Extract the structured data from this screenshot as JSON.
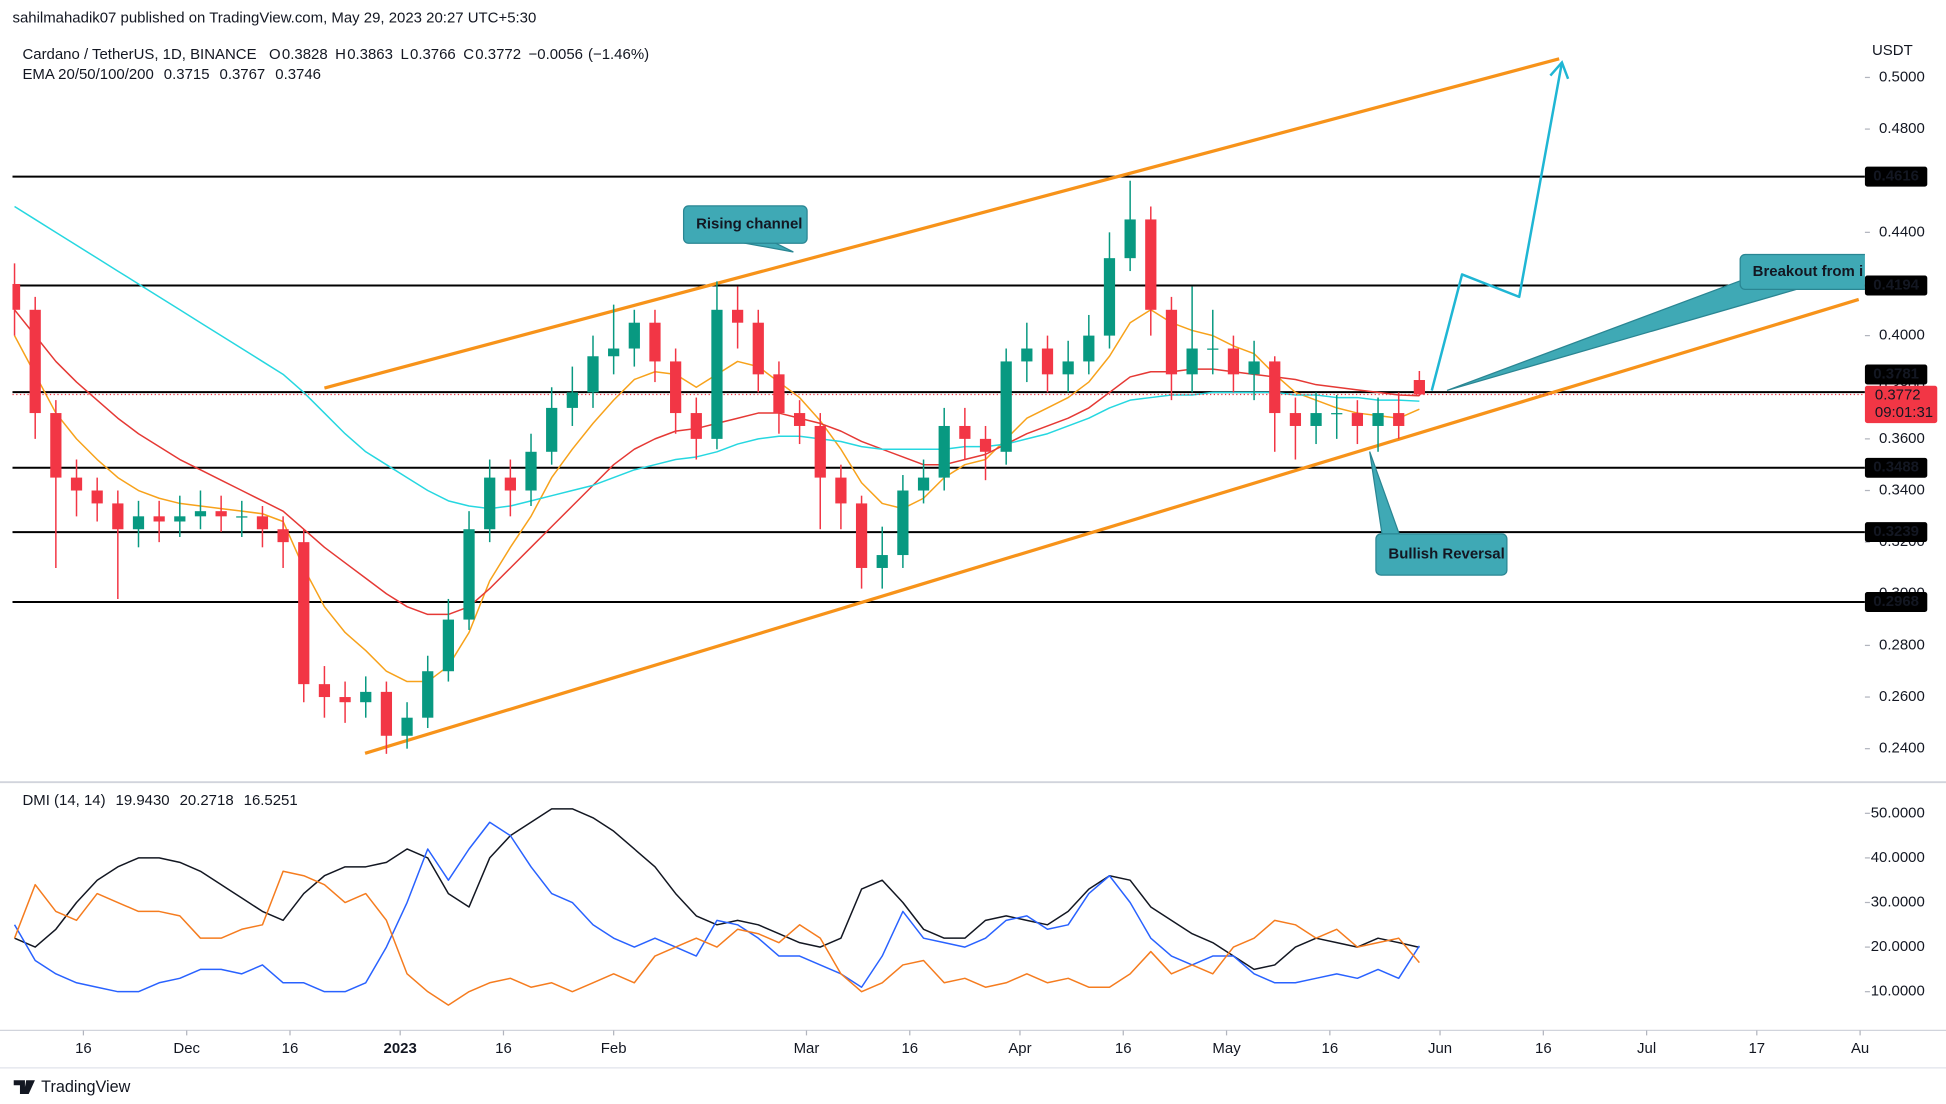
{
  "header": {
    "published": "sahilmahadik07 published on TradingView.com, May 29, 2023 20:27 UTC+5:30"
  },
  "footer": {
    "brand": "TradingView"
  },
  "chart_data": [
    {
      "type": "candlestick",
      "title": "Cardano / TetherUS, 1D, BINANCE",
      "ohlc_legend": [
        {
          "label": "O",
          "value": 0.3828
        },
        {
          "label": "H",
          "value": 0.3863
        },
        {
          "label": "L",
          "value": 0.3766
        },
        {
          "label": "C",
          "value": 0.3772
        }
      ],
      "change": {
        "value": -0.0056,
        "label": "−0.0056"
      },
      "change_pct": {
        "value": -1.46,
        "label": "(−1.46%)"
      },
      "up_color": "#089981",
      "down_color": "#f23645",
      "x": [
        -10,
        -7,
        -4,
        -1,
        2,
        5,
        8,
        11,
        14,
        17,
        20,
        23,
        26,
        29,
        32,
        35,
        38,
        41,
        44,
        47,
        50,
        53,
        56,
        59,
        62,
        65,
        68,
        71,
        74,
        77,
        80,
        83,
        86,
        89,
        92,
        95,
        98,
        101,
        104,
        107,
        110,
        113,
        116,
        119,
        122,
        125,
        128,
        131,
        134,
        137,
        140,
        143,
        146,
        149,
        152,
        155,
        158,
        161,
        164,
        167,
        170,
        173,
        176,
        179,
        182,
        185,
        188,
        191,
        194
      ],
      "open": [
        0.42,
        0.41,
        0.37,
        0.345,
        0.34,
        0.335,
        0.325,
        0.33,
        0.328,
        0.33,
        0.332,
        0.33,
        0.33,
        0.325,
        0.32,
        0.265,
        0.26,
        0.258,
        0.262,
        0.245,
        0.252,
        0.27,
        0.29,
        0.325,
        0.345,
        0.34,
        0.355,
        0.372,
        0.378,
        0.392,
        0.395,
        0.405,
        0.39,
        0.37,
        0.36,
        0.41,
        0.405,
        0.385,
        0.37,
        0.365,
        0.345,
        0.335,
        0.31,
        0.315,
        0.34,
        0.345,
        0.365,
        0.36,
        0.355,
        0.39,
        0.395,
        0.385,
        0.39,
        0.4,
        0.43,
        0.445,
        0.41,
        0.385,
        0.395,
        0.395,
        0.385,
        0.39,
        0.37,
        0.365,
        0.37,
        0.37,
        0.365,
        0.37,
        0.3828
      ],
      "high": [
        0.428,
        0.415,
        0.375,
        0.352,
        0.345,
        0.34,
        0.336,
        0.336,
        0.338,
        0.34,
        0.338,
        0.336,
        0.334,
        0.33,
        0.325,
        0.272,
        0.266,
        0.268,
        0.266,
        0.258,
        0.276,
        0.298,
        0.332,
        0.352,
        0.352,
        0.362,
        0.38,
        0.388,
        0.4,
        0.412,
        0.41,
        0.41,
        0.395,
        0.376,
        0.421,
        0.419,
        0.41,
        0.39,
        0.375,
        0.37,
        0.35,
        0.338,
        0.326,
        0.346,
        0.352,
        0.372,
        0.372,
        0.365,
        0.395,
        0.405,
        0.4,
        0.398,
        0.408,
        0.44,
        0.46,
        0.45,
        0.415,
        0.419,
        0.41,
        0.4,
        0.398,
        0.392,
        0.376,
        0.378,
        0.377,
        0.375,
        0.376,
        0.378,
        0.3863
      ],
      "low": [
        0.4,
        0.36,
        0.31,
        0.33,
        0.328,
        0.298,
        0.318,
        0.32,
        0.322,
        0.325,
        0.324,
        0.322,
        0.318,
        0.31,
        0.258,
        0.252,
        0.25,
        0.252,
        0.238,
        0.24,
        0.248,
        0.266,
        0.286,
        0.32,
        0.33,
        0.334,
        0.35,
        0.365,
        0.372,
        0.385,
        0.388,
        0.382,
        0.362,
        0.352,
        0.356,
        0.395,
        0.378,
        0.362,
        0.358,
        0.325,
        0.325,
        0.302,
        0.302,
        0.31,
        0.335,
        0.34,
        0.352,
        0.344,
        0.35,
        0.382,
        0.378,
        0.378,
        0.385,
        0.395,
        0.425,
        0.4,
        0.375,
        0.378,
        0.385,
        0.378,
        0.375,
        0.355,
        0.352,
        0.358,
        0.36,
        0.358,
        0.355,
        0.36,
        0.3766
      ],
      "close": [
        0.41,
        0.37,
        0.345,
        0.34,
        0.335,
        0.325,
        0.33,
        0.328,
        0.33,
        0.332,
        0.33,
        0.33,
        0.325,
        0.32,
        0.265,
        0.26,
        0.258,
        0.262,
        0.245,
        0.252,
        0.27,
        0.29,
        0.325,
        0.345,
        0.34,
        0.355,
        0.372,
        0.378,
        0.392,
        0.395,
        0.405,
        0.39,
        0.37,
        0.36,
        0.41,
        0.405,
        0.385,
        0.37,
        0.365,
        0.345,
        0.335,
        0.31,
        0.315,
        0.34,
        0.345,
        0.365,
        0.36,
        0.355,
        0.39,
        0.395,
        0.385,
        0.39,
        0.4,
        0.43,
        0.445,
        0.41,
        0.385,
        0.395,
        0.395,
        0.385,
        0.39,
        0.37,
        0.365,
        0.37,
        0.37,
        0.365,
        0.37,
        0.365,
        0.3772
      ],
      "xlim": [
        -10.3,
        258.7
      ],
      "ylim": [
        0.228,
        0.5155
      ],
      "yticks": [
        {
          "value": 0.24,
          "label": "0.2400"
        },
        {
          "value": 0.26,
          "label": "0.2600"
        },
        {
          "value": 0.28,
          "label": "0.2800"
        },
        {
          "value": 0.3,
          "label": "0.3000"
        },
        {
          "value": 0.32,
          "label": "0.3200"
        },
        {
          "value": 0.34,
          "label": "0.3400"
        },
        {
          "value": 0.36,
          "label": "0.3600"
        },
        {
          "value": 0.38,
          "label": "0.3800"
        },
        {
          "value": 0.4,
          "label": "0.4000"
        },
        {
          "value": 0.42,
          "label": "0.4200"
        },
        {
          "value": 0.44,
          "label": "0.4400"
        },
        {
          "value": 0.46,
          "label": "0.4600"
        },
        {
          "value": 0.48,
          "label": "0.4800"
        },
        {
          "value": 0.5,
          "label": "0.5000"
        }
      ],
      "y_unit": "USDT",
      "overlays": {
        "indicator": "EMA 20/50/100/200",
        "series": [
          {
            "color": "#f7a21b",
            "last": 0.3715,
            "values": [
              0.4,
              0.385,
              0.37,
              0.36,
              0.352,
              0.345,
              0.34,
              0.337,
              0.335,
              0.334,
              0.333,
              0.332,
              0.331,
              0.328,
              0.31,
              0.295,
              0.285,
              0.278,
              0.27,
              0.266,
              0.266,
              0.272,
              0.285,
              0.305,
              0.318,
              0.33,
              0.345,
              0.356,
              0.366,
              0.375,
              0.383,
              0.386,
              0.385,
              0.38,
              0.385,
              0.39,
              0.388,
              0.382,
              0.376,
              0.367,
              0.356,
              0.343,
              0.335,
              0.333,
              0.337,
              0.345,
              0.35,
              0.352,
              0.36,
              0.368,
              0.372,
              0.376,
              0.382,
              0.392,
              0.405,
              0.41,
              0.405,
              0.402,
              0.4,
              0.396,
              0.393,
              0.385,
              0.378,
              0.375,
              0.372,
              0.37,
              0.369,
              0.368,
              0.3715
            ]
          },
          {
            "color": "#e53935",
            "last": 0.3767,
            "values": [
              0.41,
              0.4,
              0.39,
              0.382,
              0.375,
              0.368,
              0.362,
              0.357,
              0.352,
              0.348,
              0.344,
              0.34,
              0.336,
              0.332,
              0.325,
              0.318,
              0.312,
              0.306,
              0.3,
              0.295,
              0.292,
              0.292,
              0.295,
              0.302,
              0.31,
              0.318,
              0.326,
              0.334,
              0.342,
              0.35,
              0.356,
              0.36,
              0.363,
              0.364,
              0.366,
              0.368,
              0.37,
              0.37,
              0.368,
              0.366,
              0.363,
              0.359,
              0.356,
              0.353,
              0.35,
              0.35,
              0.352,
              0.354,
              0.358,
              0.362,
              0.365,
              0.368,
              0.372,
              0.378,
              0.384,
              0.386,
              0.386,
              0.387,
              0.387,
              0.386,
              0.385,
              0.384,
              0.383,
              0.381,
              0.38,
              0.379,
              0.378,
              0.377,
              0.3767
            ]
          },
          {
            "color": "#26d7e0",
            "last": 0.3746,
            "values": [
              0.45,
              0.445,
              0.44,
              0.435,
              0.43,
              0.425,
              0.42,
              0.415,
              0.41,
              0.405,
              0.4,
              0.395,
              0.39,
              0.385,
              0.378,
              0.37,
              0.362,
              0.355,
              0.35,
              0.345,
              0.34,
              0.336,
              0.334,
              0.333,
              0.334,
              0.336,
              0.338,
              0.34,
              0.342,
              0.345,
              0.348,
              0.35,
              0.352,
              0.353,
              0.355,
              0.358,
              0.36,
              0.361,
              0.361,
              0.36,
              0.359,
              0.357,
              0.356,
              0.356,
              0.356,
              0.356,
              0.357,
              0.357,
              0.358,
              0.36,
              0.362,
              0.365,
              0.368,
              0.372,
              0.375,
              0.376,
              0.377,
              0.377,
              0.378,
              0.378,
              0.378,
              0.378,
              0.377,
              0.377,
              0.376,
              0.376,
              0.375,
              0.375,
              0.3746
            ]
          }
        ]
      },
      "levels": [
        0.4616,
        0.4194,
        0.3781,
        0.3488,
        0.3239,
        0.2968
      ],
      "last_price": {
        "value": 0.3772,
        "countdown": "09:01:31"
      },
      "channel": {
        "color": "#f7931a",
        "upper": {
          "x": [
            35,
            214.3
          ],
          "y": [
            0.3797,
            0.5072
          ]
        },
        "lower": {
          "x": [
            40.9,
            257.8
          ],
          "y": [
            0.2382,
            0.414
          ]
        }
      },
      "projection": {
        "color": "#1fb6d4",
        "x": [
          195.8,
          200.2,
          208.5,
          214.7
        ],
        "y": [
          0.3787,
          0.4237,
          0.415,
          0.5058
        ]
      },
      "annotations": [
        {
          "text": "Rising channel"
        },
        {
          "text": "Breakout from i"
        },
        {
          "text": "Bullish Reversal"
        }
      ]
    },
    {
      "type": "line",
      "title": "DMI (14, 14)",
      "legend_values": [
        {
          "value": 19.943,
          "label": "19.9430"
        },
        {
          "value": 20.2718,
          "label": "20.2718"
        },
        {
          "value": 16.5251,
          "label": "16.5251"
        }
      ],
      "x": [
        -10,
        -7,
        -4,
        -1,
        2,
        5,
        8,
        11,
        14,
        17,
        20,
        23,
        26,
        29,
        32,
        35,
        38,
        41,
        44,
        47,
        50,
        53,
        56,
        59,
        62,
        65,
        68,
        71,
        74,
        77,
        80,
        83,
        86,
        89,
        92,
        95,
        98,
        101,
        104,
        107,
        110,
        113,
        116,
        119,
        122,
        125,
        128,
        131,
        134,
        137,
        140,
        143,
        146,
        149,
        152,
        155,
        158,
        161,
        164,
        167,
        170,
        173,
        176,
        179,
        182,
        185,
        188,
        191,
        194
      ],
      "series": [
        {
          "color": "#131722",
          "values": [
            22,
            20,
            24,
            30,
            35,
            38,
            40,
            40,
            39,
            37,
            34,
            31,
            28,
            26,
            32,
            36,
            38,
            38,
            39,
            42,
            40,
            32,
            29,
            40,
            45,
            48,
            51,
            51,
            49,
            46,
            42,
            38,
            32,
            27,
            25,
            26,
            25,
            23,
            21,
            20,
            22,
            33,
            35,
            30,
            24,
            22,
            22,
            26,
            27,
            26,
            25,
            28,
            33,
            36,
            35,
            29,
            26,
            23,
            21,
            18,
            15,
            16,
            20,
            22,
            21,
            20,
            22,
            21,
            19.943
          ]
        },
        {
          "color": "#2962ff",
          "values": [
            25,
            17,
            14,
            12,
            11,
            10,
            10,
            12,
            13,
            15,
            15,
            14,
            16,
            12,
            12,
            10,
            10,
            12,
            20,
            30,
            42,
            35,
            42,
            48,
            45,
            38,
            32,
            30,
            25,
            22,
            20,
            22,
            20,
            18,
            26,
            25,
            22,
            18,
            18,
            16,
            14,
            11,
            18,
            28,
            22,
            21,
            20,
            22,
            26,
            27,
            24,
            25,
            32,
            36,
            30,
            22,
            18,
            16,
            18,
            18,
            14,
            12,
            12,
            13,
            14,
            13,
            15,
            13,
            20.2718
          ]
        },
        {
          "color": "#f57c1f",
          "values": [
            22,
            34,
            28,
            26,
            32,
            30,
            28,
            28,
            27,
            22,
            22,
            24,
            25,
            37,
            36,
            34,
            30,
            32,
            26,
            14,
            10,
            7,
            10,
            12,
            13,
            11,
            12,
            10,
            12,
            14,
            12,
            18,
            20,
            22,
            20,
            24,
            23,
            21,
            25,
            22,
            14,
            10,
            12,
            16,
            17,
            12,
            13,
            11,
            12,
            14,
            12,
            13,
            11,
            11,
            14,
            19,
            14,
            16,
            14,
            20,
            22,
            26,
            25,
            22,
            24,
            20,
            21,
            22,
            16.5251
          ]
        }
      ],
      "xlim": [
        -10.3,
        258.7
      ],
      "ylim": [
        1.6,
        56.15
      ],
      "yticks": [
        {
          "value": 10,
          "label": "10.0000"
        },
        {
          "value": 20,
          "label": "20.0000"
        },
        {
          "value": 30,
          "label": "30.0000"
        },
        {
          "value": 40,
          "label": "40.0000"
        },
        {
          "value": 50,
          "label": "50.0000"
        }
      ],
      "xticks": [
        {
          "value": 0,
          "label": "16"
        },
        {
          "value": 15,
          "label": "Dec"
        },
        {
          "value": 30,
          "label": "16"
        },
        {
          "value": 46,
          "label": "2023"
        },
        {
          "value": 61,
          "label": "16"
        },
        {
          "value": 77,
          "label": "Feb"
        },
        {
          "value": 105,
          "label": "Mar"
        },
        {
          "value": 120,
          "label": "16"
        },
        {
          "value": 136,
          "label": "Apr"
        },
        {
          "value": 151,
          "label": "16"
        },
        {
          "value": 166,
          "label": "May"
        },
        {
          "value": 181,
          "label": "16"
        },
        {
          "value": 197,
          "label": "Jun"
        },
        {
          "value": 212,
          "label": "16"
        },
        {
          "value": 227,
          "label": "Jul"
        },
        {
          "value": 243,
          "label": "17"
        },
        {
          "value": 258,
          "label": "Au"
        }
      ]
    }
  ]
}
